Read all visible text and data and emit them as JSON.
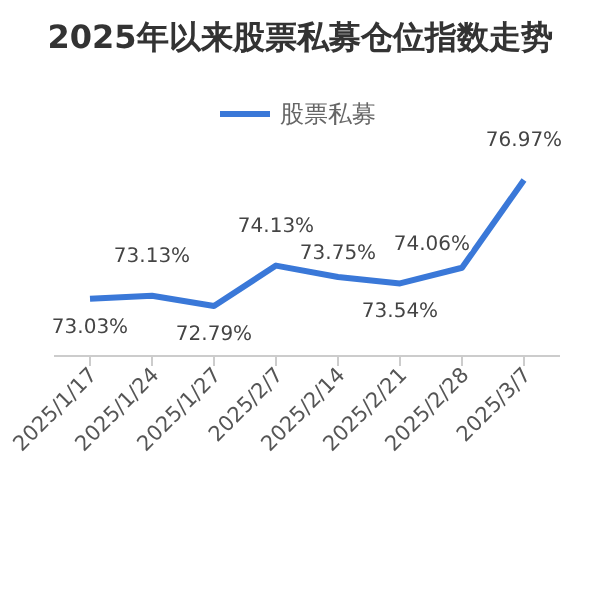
{
  "chart_data": {
    "type": "line",
    "title": "2025年以来股票私募仓位指数走势",
    "categories": [
      "2025/1/17",
      "2025/1/24",
      "2025/1/27",
      "2025/2/7",
      "2025/2/14",
      "2025/2/21",
      "2025/2/28",
      "2025/3/7"
    ],
    "series": [
      {
        "name": "股票私募",
        "color": "#3a78d8",
        "values": [
          73.03,
          73.13,
          72.79,
          74.13,
          73.75,
          73.54,
          74.06,
          76.97
        ],
        "value_labels": [
          "73.03%",
          "73.13%",
          "72.79%",
          "74.13%",
          "73.75%",
          "73.54%",
          "74.06%",
          "76.97%"
        ]
      }
    ],
    "legend": "top",
    "grid": false,
    "marker": "none",
    "tick_labels": "x"
  }
}
